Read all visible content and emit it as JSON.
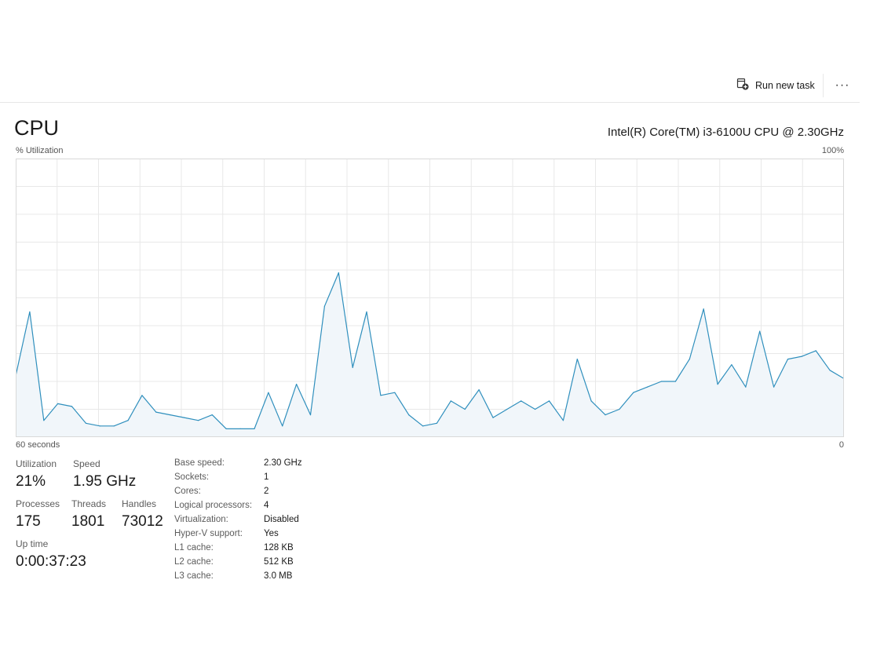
{
  "toolbar": {
    "run_new_task_label": "Run new task",
    "more_label": "···",
    "run_task_icon": "run-task-icon",
    "more_icon": "more-options-icon"
  },
  "header": {
    "title": "CPU",
    "cpu_model": "Intel(R) Core(TM) i3-6100U CPU @ 2.30GHz"
  },
  "chart_data": {
    "type": "area",
    "ylabel": "% Utilization",
    "y_max_label": "100%",
    "x_left_label": "60 seconds",
    "x_right_label": "0",
    "ylim": [
      0,
      100
    ],
    "grid": true,
    "line_color": "#2f8fbd",
    "fill_color": "#f1f6fa",
    "values": [
      22,
      45,
      6,
      12,
      11,
      5,
      4,
      4,
      6,
      15,
      9,
      8,
      7,
      6,
      8,
      3,
      3,
      3,
      16,
      4,
      19,
      8,
      47,
      59,
      25,
      45,
      15,
      16,
      8,
      4,
      5,
      13,
      10,
      17,
      7,
      10,
      13,
      10,
      13,
      6,
      28,
      13,
      8,
      10,
      16,
      18,
      20,
      20,
      28,
      46,
      19,
      26,
      18,
      38,
      18,
      28,
      29,
      31,
      24,
      21
    ]
  },
  "stats": {
    "utilization": {
      "label": "Utilization",
      "value": "21%"
    },
    "speed": {
      "label": "Speed",
      "value": "1.95 GHz"
    },
    "processes": {
      "label": "Processes",
      "value": "175"
    },
    "threads": {
      "label": "Threads",
      "value": "1801"
    },
    "handles": {
      "label": "Handles",
      "value": "73012"
    },
    "uptime": {
      "label": "Up time",
      "value": "0:00:37:23"
    }
  },
  "specs": [
    {
      "key": "Base speed:",
      "value": "2.30 GHz"
    },
    {
      "key": "Sockets:",
      "value": "1"
    },
    {
      "key": "Cores:",
      "value": "2"
    },
    {
      "key": "Logical processors:",
      "value": "4"
    },
    {
      "key": "Virtualization:",
      "value": "Disabled"
    },
    {
      "key": "Hyper-V support:",
      "value": "Yes"
    },
    {
      "key": "L1 cache:",
      "value": "128 KB"
    },
    {
      "key": "L2 cache:",
      "value": "512 KB"
    },
    {
      "key": "L3 cache:",
      "value": "3.0 MB"
    }
  ]
}
